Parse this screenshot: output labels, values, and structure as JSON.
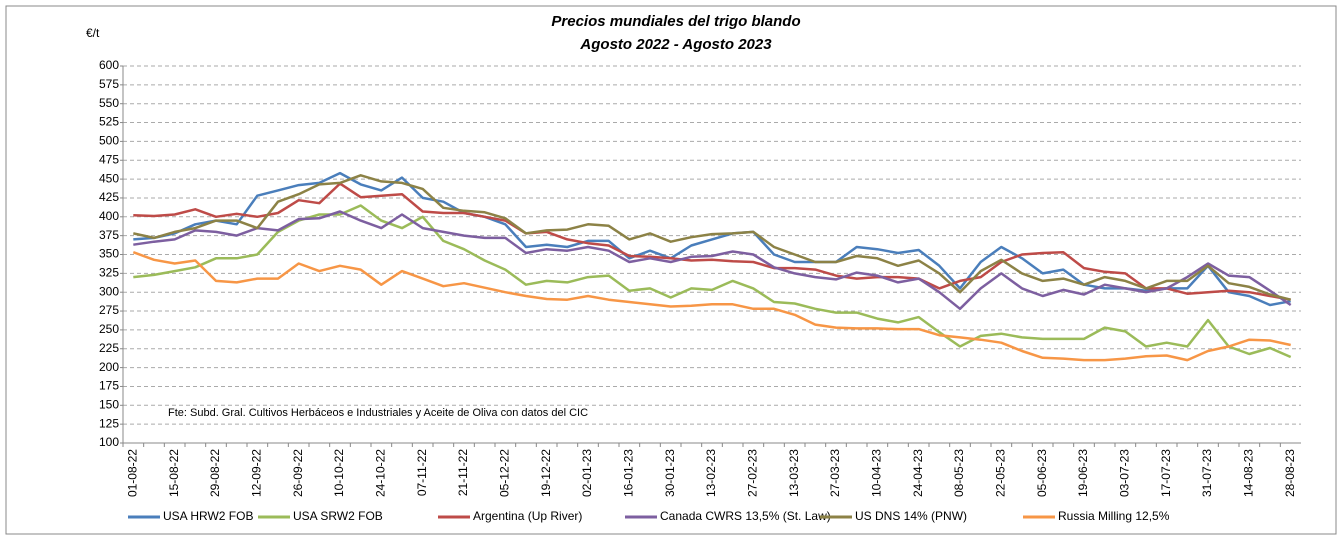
{
  "chart_data": {
    "type": "line",
    "title": "Precios mundiales del trigo blando",
    "subtitle": "Agosto 2022 - Agosto 2023",
    "y_label": "€/t",
    "annotation": "Fte: Subd. Gral. Cultivos Herbáceos e Industriales y Aceite de Oliva con datos del  CIC",
    "categories": [
      "01-08-22",
      null,
      "15-08-22",
      null,
      "29-08-22",
      null,
      "12-09-22",
      null,
      "26-09-22",
      null,
      "10-10-22",
      null,
      "24-10-22",
      null,
      "07-11-22",
      null,
      "21-11-22",
      null,
      "05-12-22",
      null,
      "19-12-22",
      null,
      "02-01-23",
      null,
      "16-01-23",
      null,
      "30-01-23",
      null,
      "13-02-23",
      null,
      "27-02-23",
      null,
      "13-03-23",
      null,
      "27-03-23",
      null,
      "10-04-23",
      null,
      "24-04-23",
      null,
      "08-05-23",
      null,
      "22-05-23",
      null,
      "05-06-23",
      null,
      "19-06-23",
      null,
      "03-07-23",
      null,
      "17-07-23",
      null,
      "31-07-23",
      null,
      "14-08-23",
      null,
      "28-08-23"
    ],
    "series": [
      {
        "name": "USA HRW2 FOB",
        "color": "#4a7ebb",
        "values": [
          370,
          372,
          378,
          390,
          395,
          390,
          428,
          435,
          442,
          445,
          458,
          443,
          435,
          452,
          425,
          420,
          405,
          400,
          390,
          360,
          363,
          360,
          368,
          368,
          345,
          355,
          345,
          362,
          370,
          378,
          380,
          350,
          340,
          340,
          340,
          360,
          357,
          352,
          356,
          335,
          305,
          340,
          360,
          345,
          325,
          330,
          310,
          305,
          305,
          302,
          305,
          305,
          335,
          300,
          295,
          283,
          288
        ]
      },
      {
        "name": "USA SRW2 FOB",
        "color": "#9bbb59",
        "values": [
          320,
          323,
          328,
          333,
          345,
          345,
          350,
          380,
          395,
          403,
          403,
          415,
          395,
          385,
          400,
          368,
          357,
          342,
          330,
          310,
          315,
          313,
          320,
          322,
          302,
          305,
          293,
          305,
          303,
          315,
          305,
          287,
          285,
          278,
          273,
          273,
          265,
          260,
          267,
          247,
          228,
          242,
          245,
          240,
          238,
          238,
          238,
          253,
          248,
          228,
          233,
          228,
          263,
          228,
          218,
          226,
          214
        ]
      },
      {
        "name": "Argentina (Up River)",
        "color": "#be4b48",
        "values": [
          402,
          401,
          403,
          410,
          400,
          404,
          400,
          405,
          422,
          418,
          444,
          426,
          428,
          430,
          407,
          405,
          405,
          400,
          395,
          378,
          380,
          370,
          365,
          362,
          348,
          347,
          345,
          342,
          343,
          341,
          340,
          332,
          332,
          330,
          322,
          318,
          320,
          320,
          318,
          305,
          315,
          320,
          340,
          350,
          352,
          353,
          332,
          327,
          325,
          305,
          305,
          298,
          300,
          302,
          300,
          295,
          290
        ]
      },
      {
        "name": "Canada CWRS 13,5% (St. Law)",
        "color": "#7d5fa0",
        "values": [
          363,
          367,
          370,
          382,
          380,
          375,
          385,
          382,
          397,
          398,
          407,
          395,
          385,
          403,
          385,
          380,
          375,
          372,
          372,
          352,
          357,
          355,
          360,
          355,
          340,
          345,
          340,
          347,
          348,
          354,
          350,
          333,
          325,
          320,
          317,
          326,
          322,
          313,
          318,
          300,
          278,
          305,
          325,
          305,
          295,
          303,
          297,
          310,
          305,
          300,
          305,
          320,
          338,
          322,
          320,
          302,
          283
        ]
      },
      {
        "name": "US DNS 14% (PNW)",
        "color": "#8c8246",
        "values": [
          378,
          372,
          380,
          385,
          395,
          395,
          385,
          420,
          430,
          443,
          445,
          455,
          447,
          445,
          437,
          412,
          408,
          406,
          398,
          378,
          382,
          383,
          390,
          388,
          370,
          378,
          367,
          373,
          377,
          378,
          380,
          360,
          350,
          340,
          340,
          348,
          345,
          335,
          342,
          325,
          300,
          328,
          343,
          325,
          315,
          318,
          310,
          320,
          315,
          305,
          315,
          315,
          335,
          312,
          307,
          297,
          290
        ]
      },
      {
        "name": "Russia Milling 12,5%",
        "color": "#f79646",
        "values": [
          353,
          343,
          338,
          342,
          315,
          313,
          318,
          318,
          338,
          328,
          335,
          330,
          310,
          328,
          318,
          308,
          312,
          306,
          300,
          295,
          291,
          290,
          295,
          290,
          287,
          284,
          281,
          282,
          284,
          284,
          278,
          278,
          270,
          257,
          253,
          252,
          252,
          251,
          251,
          243,
          240,
          237,
          233,
          222,
          213,
          212,
          210,
          210,
          212,
          215,
          216,
          210,
          222,
          228,
          237,
          236,
          230
        ]
      }
    ],
    "ylim": [
      100,
      600
    ],
    "yticks": [
      100,
      125,
      150,
      175,
      200,
      225,
      250,
      275,
      300,
      325,
      350,
      375,
      400,
      425,
      450,
      475,
      500,
      525,
      550,
      575,
      600
    ],
    "grid": true,
    "legend": "bottom"
  }
}
